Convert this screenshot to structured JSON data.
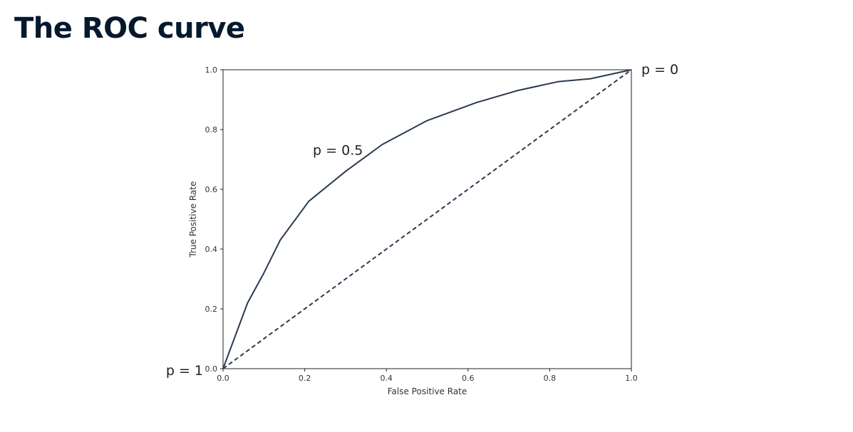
{
  "slide": {
    "title": "The ROC curve"
  },
  "chart_data": {
    "type": "line",
    "xlabel": "False Positive Rate",
    "ylabel": "True Positive Rate",
    "xlim": [
      0.0,
      1.0
    ],
    "ylim": [
      0.0,
      1.0
    ],
    "xticks": [
      0.0,
      0.2,
      0.4,
      0.6,
      0.8,
      1.0
    ],
    "yticks": [
      0.0,
      0.2,
      0.4,
      0.6,
      0.8,
      1.0
    ],
    "xtick_labels": [
      "0.0",
      "0.2",
      "0.4",
      "0.6",
      "0.8",
      "1.0"
    ],
    "ytick_labels": [
      "0.0",
      "0.2",
      "0.4",
      "0.6",
      "0.8",
      "1.0"
    ],
    "grid": false,
    "line_color": "#2b3a4f",
    "series": [
      {
        "style": "solid",
        "x": [
          0.0,
          0.06,
          0.1,
          0.14,
          0.21,
          0.3,
          0.39,
          0.5,
          0.62,
          0.72,
          0.82,
          0.9,
          1.0
        ],
        "y": [
          0.0,
          0.22,
          0.32,
          0.43,
          0.56,
          0.66,
          0.75,
          0.83,
          0.89,
          0.93,
          0.96,
          0.97,
          1.0
        ]
      },
      {
        "style": "dashed",
        "x": [
          0.0,
          1.0
        ],
        "y": [
          0.0,
          1.0
        ]
      }
    ],
    "annotations": [
      {
        "text": "p = 1",
        "x": 0.0,
        "y": 0.0,
        "anchor": "left-of-point"
      },
      {
        "text": "p = 0.5",
        "x": 0.22,
        "y": 0.73,
        "anchor": "at-point"
      },
      {
        "text": "p = 0",
        "x": 1.0,
        "y": 1.0,
        "anchor": "right-of-point"
      }
    ]
  }
}
